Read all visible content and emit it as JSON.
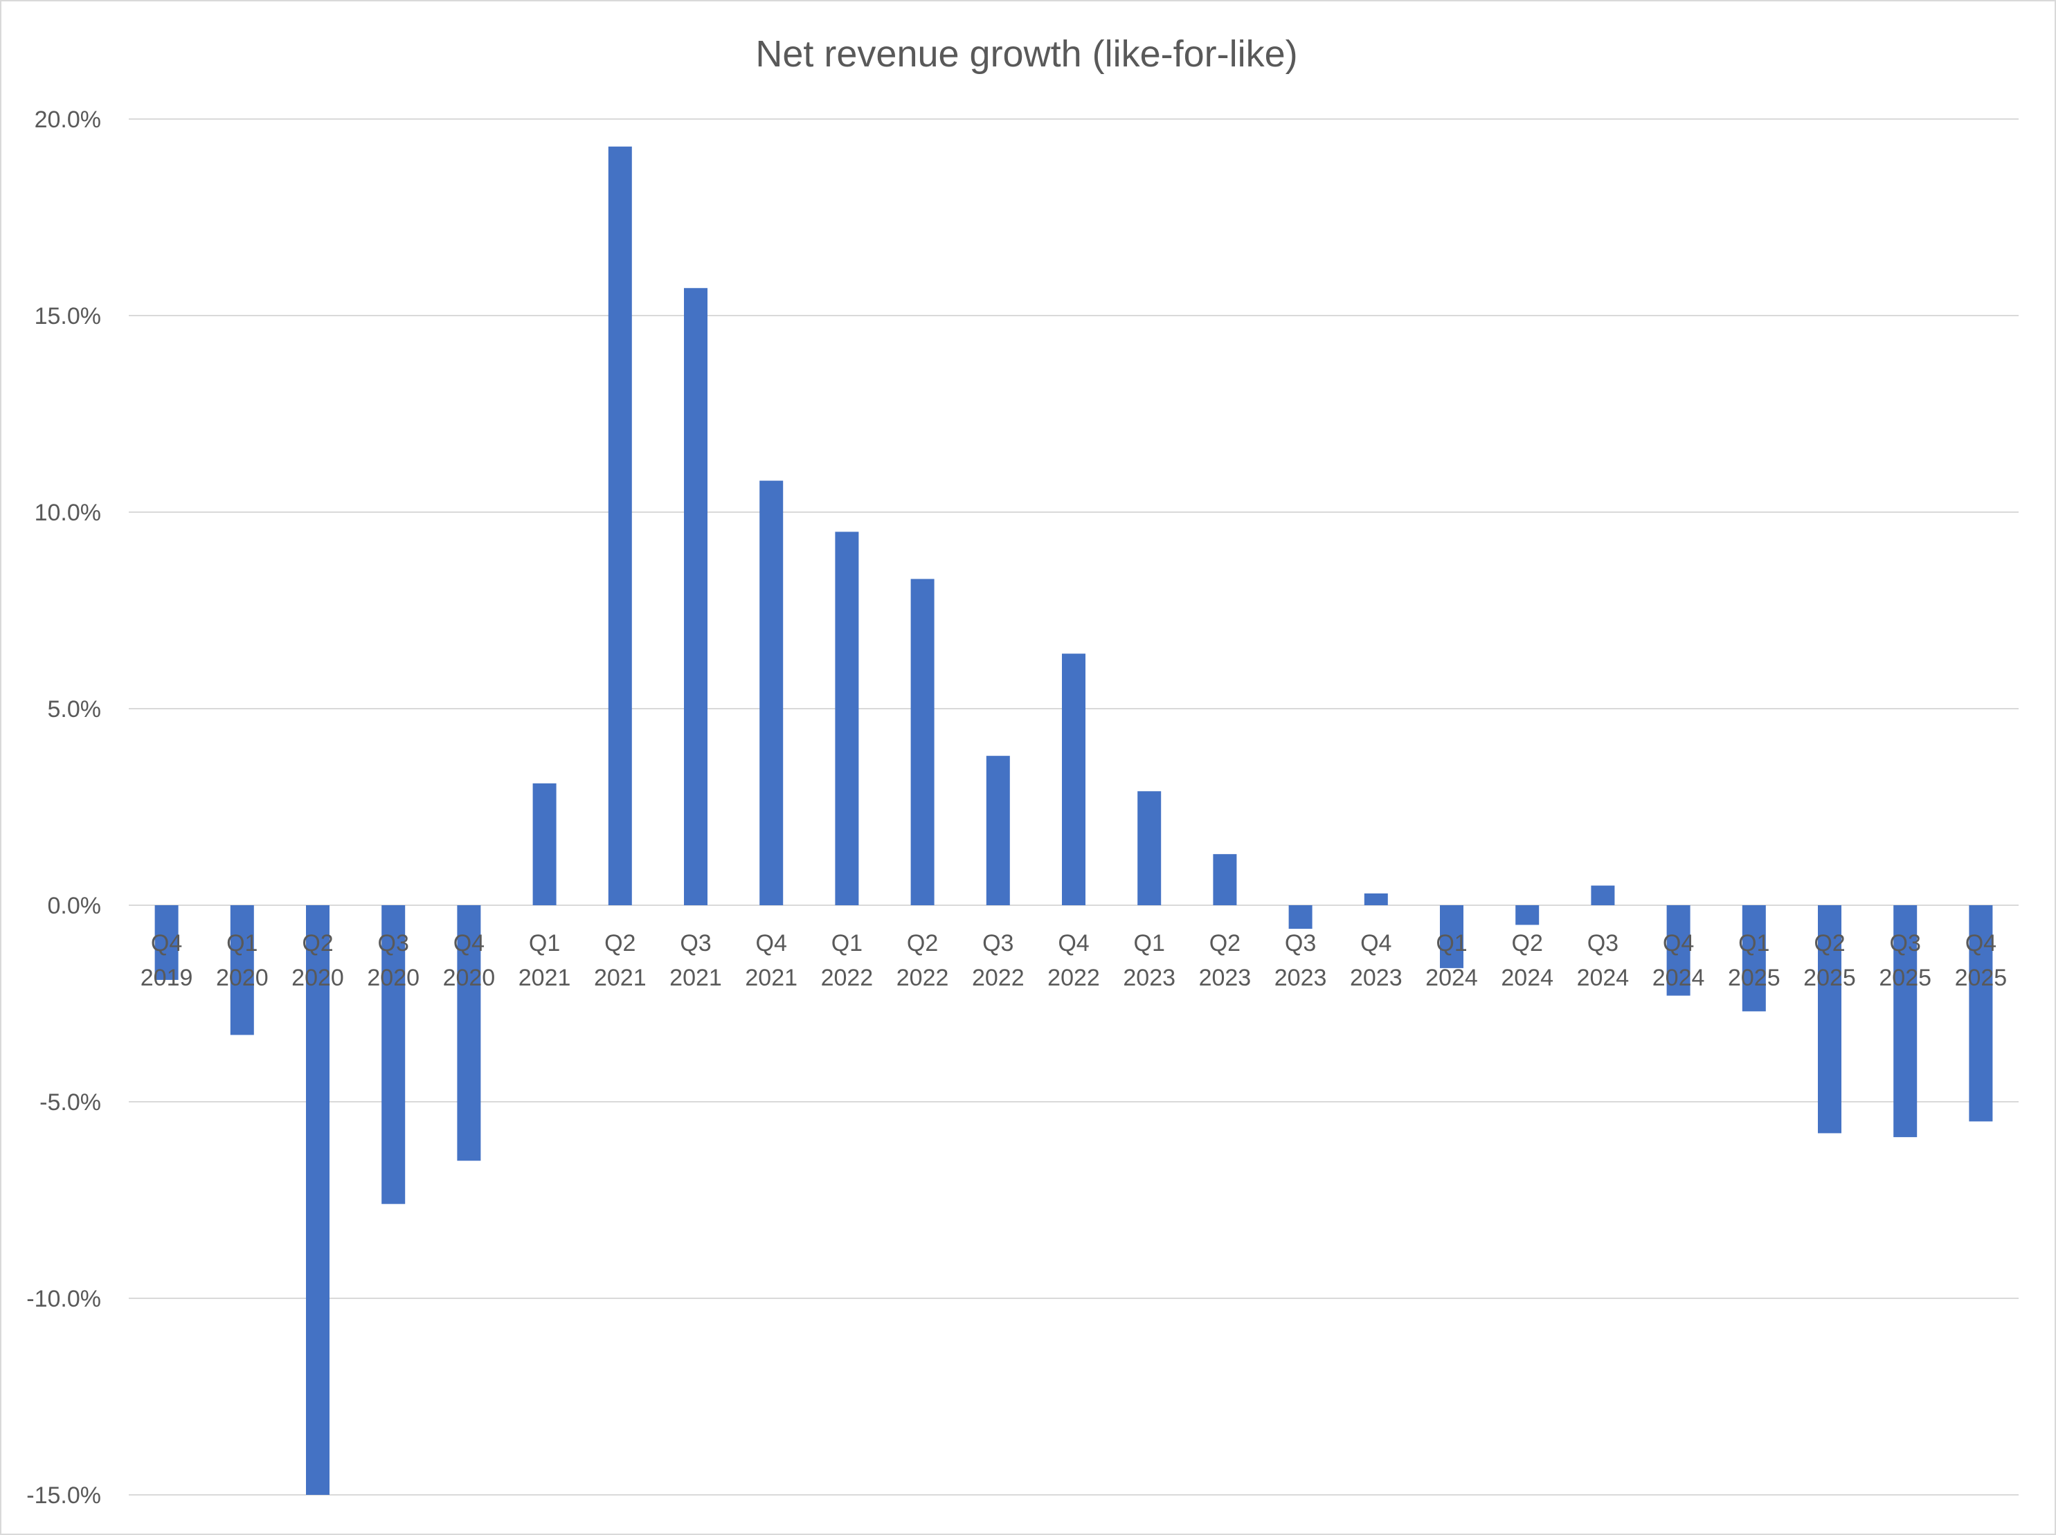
{
  "chart_data": {
    "type": "bar",
    "title": "Net revenue growth (like-for-like)",
    "xlabel": "",
    "ylabel": "",
    "ylim": [
      -15.0,
      20.0
    ],
    "yticks": [
      20.0,
      15.0,
      10.0,
      5.0,
      0.0,
      -5.0,
      -10.0,
      -15.0
    ],
    "ytick_labels": [
      "20.0%",
      "15.0%",
      "10.0%",
      "5.0%",
      "0.0%",
      "-5.0%",
      "-10.0%",
      "-15.0%"
    ],
    "grid": true,
    "legend": "none",
    "bar_color": "#4472c4",
    "categories": [
      {
        "quarter": "Q4",
        "year": "2019"
      },
      {
        "quarter": "Q1",
        "year": "2020"
      },
      {
        "quarter": "Q2",
        "year": "2020"
      },
      {
        "quarter": "Q3",
        "year": "2020"
      },
      {
        "quarter": "Q4",
        "year": "2020"
      },
      {
        "quarter": "Q1",
        "year": "2021"
      },
      {
        "quarter": "Q2",
        "year": "2021"
      },
      {
        "quarter": "Q3",
        "year": "2021"
      },
      {
        "quarter": "Q4",
        "year": "2021"
      },
      {
        "quarter": "Q1",
        "year": "2022"
      },
      {
        "quarter": "Q2",
        "year": "2022"
      },
      {
        "quarter": "Q3",
        "year": "2022"
      },
      {
        "quarter": "Q4",
        "year": "2022"
      },
      {
        "quarter": "Q1",
        "year": "2023"
      },
      {
        "quarter": "Q2",
        "year": "2023"
      },
      {
        "quarter": "Q3",
        "year": "2023"
      },
      {
        "quarter": "Q4",
        "year": "2023"
      },
      {
        "quarter": "Q1",
        "year": "2024"
      },
      {
        "quarter": "Q2",
        "year": "2024"
      },
      {
        "quarter": "Q3",
        "year": "2024"
      },
      {
        "quarter": "Q4",
        "year": "2024"
      },
      {
        "quarter": "Q1",
        "year": "2025"
      },
      {
        "quarter": "Q2",
        "year": "2025"
      },
      {
        "quarter": "Q3",
        "year": "2025"
      },
      {
        "quarter": "Q4",
        "year": "2025"
      }
    ],
    "values": [
      -1.9,
      -3.3,
      -15.0,
      -7.6,
      -6.5,
      3.1,
      19.3,
      15.7,
      10.8,
      9.5,
      8.3,
      3.8,
      6.4,
      2.9,
      1.3,
      -0.6,
      0.3,
      -1.6,
      -0.5,
      0.5,
      -2.3,
      -2.7,
      -5.8,
      -5.9,
      -5.5
    ]
  }
}
